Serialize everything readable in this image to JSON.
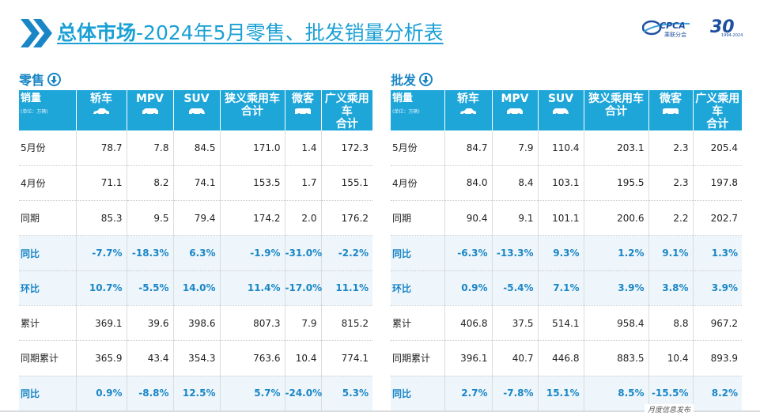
{
  "header": {
    "title_bold": "总体市场",
    "title_rest": "-2024年5月零售、批发销量分析表",
    "logo_text": "CPCA",
    "logo_sub": "乘联分会",
    "logo_30": "30",
    "logo_years": "1994-2024"
  },
  "columns": [
    "销量",
    "轿车",
    "MPV",
    "SUV",
    "狭义乘用车合计",
    "微客",
    "广义乘用车合计"
  ],
  "unit": "(单位：万辆)",
  "colors": {
    "accent": "#1ea6d9",
    "pct_text": "#1a86c6",
    "pct_bg": "#eef6fb"
  },
  "retail": {
    "title": "零售",
    "headers": {
      "c0": "销量",
      "c1": "轿车",
      "c2": "MPV",
      "c3": "SUV",
      "c4a": "狭义乘用车",
      "c4b": "合计",
      "c5": "微客",
      "c6a": "广义乘用车",
      "c6b": "合计"
    },
    "rows": [
      [
        "5月份",
        "78.7",
        "7.8",
        "84.5",
        "171.0",
        "1.4",
        "172.3"
      ],
      [
        "4月份",
        "71.1",
        "8.2",
        "74.1",
        "153.5",
        "1.7",
        "155.1"
      ],
      [
        "同期",
        "85.3",
        "9.5",
        "79.4",
        "174.2",
        "2.0",
        "176.2"
      ],
      [
        "同比",
        "-7.7%",
        "-18.3%",
        "6.3%",
        "-1.9%",
        "-31.0%",
        "-2.2%"
      ],
      [
        "环比",
        "10.7%",
        "-5.5%",
        "14.0%",
        "11.4%",
        "-17.0%",
        "11.1%"
      ],
      [
        "累计",
        "369.1",
        "39.6",
        "398.6",
        "807.3",
        "7.9",
        "815.2"
      ],
      [
        "同期累计",
        "365.9",
        "43.4",
        "354.3",
        "763.6",
        "10.4",
        "774.1"
      ],
      [
        "同比",
        "0.9%",
        "-8.8%",
        "12.5%",
        "5.7%",
        "-24.0%",
        "5.3%"
      ]
    ]
  },
  "wholesale": {
    "title": "批发",
    "headers": {
      "c0": "销量",
      "c1": "轿车",
      "c2": "MPV",
      "c3": "SUV",
      "c4a": "狭义乘用车",
      "c4b": "合计",
      "c5": "微客",
      "c6a": "广义乘用车",
      "c6b": "合计"
    },
    "rows": [
      [
        "5月份",
        "84.7",
        "7.9",
        "110.4",
        "203.1",
        "2.3",
        "205.4"
      ],
      [
        "4月份",
        "84.0",
        "8.4",
        "103.1",
        "195.5",
        "2.3",
        "197.8"
      ],
      [
        "同期",
        "90.4",
        "9.1",
        "101.1",
        "200.6",
        "2.2",
        "202.7"
      ],
      [
        "同比",
        "-6.3%",
        "-13.3%",
        "9.3%",
        "1.2%",
        "9.1%",
        "1.3%"
      ],
      [
        "环比",
        "0.9%",
        "-5.4%",
        "7.1%",
        "3.9%",
        "3.8%",
        "3.9%"
      ],
      [
        "累计",
        "406.8",
        "37.5",
        "514.1",
        "958.4",
        "8.8",
        "967.2"
      ],
      [
        "同期累计",
        "396.1",
        "40.7",
        "446.8",
        "883.5",
        "10.4",
        "893.9"
      ],
      [
        "同比",
        "2.7%",
        "-7.8%",
        "15.1%",
        "8.5%",
        "-15.5%",
        "8.2%"
      ]
    ]
  },
  "footer": {
    "text": "月度信息发布"
  }
}
